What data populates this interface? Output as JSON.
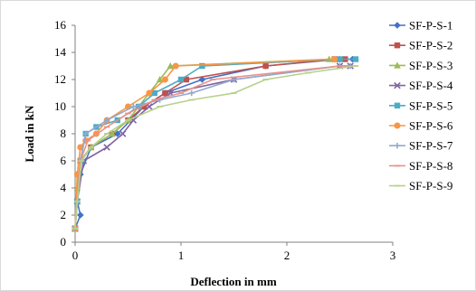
{
  "chart_data": {
    "type": "line",
    "title": "",
    "xlabel": "Deflection in mm",
    "ylabel": "Load in kN",
    "xlim": [
      0,
      3
    ],
    "ylim": [
      0,
      16
    ],
    "xticks": [
      "0",
      "1",
      "2",
      "3"
    ],
    "yticks": [
      "0",
      "2",
      "4",
      "6",
      "8",
      "10",
      "12",
      "14",
      "16"
    ],
    "grid": false,
    "legend_position": "right",
    "series": [
      {
        "name": "SF-P-S-1",
        "color": "#4472C4",
        "marker": "diamond",
        "x": [
          0,
          0.05,
          0.02,
          0.05,
          0.15,
          0.4,
          0.65,
          0.85,
          1.2,
          1.8,
          2.5,
          2.62
        ],
        "y": [
          1,
          2,
          3,
          5,
          7,
          8,
          10,
          11,
          12,
          13,
          13.5,
          13.5
        ]
      },
      {
        "name": "SF-P-S-2",
        "color": "#C0504D",
        "marker": "square",
        "x": [
          0,
          0.02,
          0.05,
          0.15,
          0.35,
          0.5,
          0.65,
          0.85,
          1.05,
          1.8,
          2.45,
          2.55
        ],
        "y": [
          1,
          3,
          6,
          7,
          8,
          9,
          10,
          11,
          12,
          13,
          13.5,
          13.5
        ]
      },
      {
        "name": "SF-P-S-3",
        "color": "#9BBB59",
        "marker": "triangle",
        "x": [
          0,
          0.02,
          0.05,
          0.15,
          0.35,
          0.5,
          0.6,
          0.7,
          0.8,
          0.9,
          2.4,
          2.5
        ],
        "y": [
          1,
          4,
          6,
          7,
          8,
          9,
          10,
          11,
          12,
          13,
          13.5,
          13.5
        ]
      },
      {
        "name": "SF-P-S-4",
        "color": "#8064A2",
        "marker": "x",
        "x": [
          0,
          0.02,
          0.08,
          0.3,
          0.45,
          0.55,
          0.7,
          0.9,
          1.5,
          2.5,
          2.6
        ],
        "y": [
          1,
          3,
          6,
          7,
          8,
          9,
          10,
          11,
          12,
          13,
          13
        ]
      },
      {
        "name": "SF-P-S-5",
        "color": "#4BACC6",
        "marker": "square",
        "x": [
          0,
          0.02,
          0.05,
          0.1,
          0.2,
          0.4,
          0.6,
          0.75,
          1.0,
          1.2,
          2.5,
          2.65
        ],
        "y": [
          1,
          3,
          6,
          8,
          8.5,
          9,
          10,
          11,
          12,
          13,
          13.5,
          13.5
        ]
      },
      {
        "name": "SF-P-S-6",
        "color": "#F79646",
        "marker": "circle",
        "x": [
          0,
          0.02,
          0.05,
          0.1,
          0.2,
          0.3,
          0.5,
          0.7,
          0.85,
          0.95,
          2.45
        ],
        "y": [
          1,
          5,
          7,
          7.5,
          8,
          9,
          10,
          11,
          12,
          13,
          13.5
        ]
      },
      {
        "name": "SF-P-S-7",
        "color": "#93A9CF",
        "marker": "plus",
        "x": [
          0,
          0.02,
          0.05,
          0.1,
          0.3,
          0.55,
          0.8,
          1.1,
          1.5,
          2.5,
          2.6
        ],
        "y": [
          1,
          3,
          6,
          8,
          9,
          10,
          10.5,
          11,
          12,
          13,
          13
        ]
      },
      {
        "name": "SF-P-S-8",
        "color": "#E8928A",
        "marker": "dash",
        "x": [
          0,
          0.02,
          0.05,
          0.12,
          0.3,
          0.5,
          0.75,
          1.0,
          1.3,
          2.5,
          2.6
        ],
        "y": [
          1,
          3,
          6,
          7.5,
          8.5,
          9.5,
          10.5,
          11,
          12,
          13,
          13
        ]
      },
      {
        "name": "SF-P-S-9",
        "color": "#B5D28A",
        "marker": "dash",
        "x": [
          0,
          0.02,
          0.06,
          0.15,
          0.3,
          0.5,
          0.8,
          1.1,
          1.5,
          1.8,
          2.2,
          2.65
        ],
        "y": [
          1,
          3,
          6,
          7,
          8,
          9,
          10,
          10.5,
          11,
          12,
          12.5,
          13
        ]
      }
    ]
  }
}
